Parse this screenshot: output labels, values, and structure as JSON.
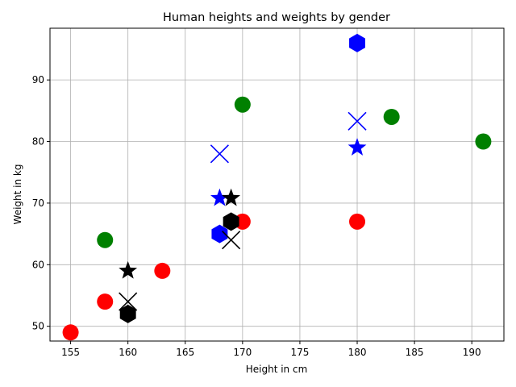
{
  "chart_data": {
    "type": "scatter",
    "title": "Human heights and weights by gender",
    "xlabel": "Height in cm",
    "ylabel": "Weight in kg",
    "xlim": [
      153.2,
      192.8
    ],
    "ylim": [
      47.6,
      98.4
    ],
    "xticks": [
      155,
      160,
      165,
      170,
      175,
      180,
      185,
      190
    ],
    "yticks": [
      50,
      60,
      70,
      80,
      90
    ],
    "grid": true,
    "series": [
      {
        "marker": "circle",
        "color": "#ff0000",
        "points": [
          [
            155,
            49
          ],
          [
            158,
            54
          ],
          [
            163,
            59
          ],
          [
            170,
            67
          ],
          [
            180,
            67
          ]
        ]
      },
      {
        "marker": "circle",
        "color": "#008000",
        "points": [
          [
            158,
            64
          ],
          [
            170,
            86
          ],
          [
            183,
            84
          ],
          [
            191,
            80
          ]
        ]
      },
      {
        "marker": "hexagon",
        "color": "#0000ff",
        "points": [
          [
            168,
            65
          ],
          [
            180,
            96
          ]
        ]
      },
      {
        "marker": "x",
        "color": "#0000ff",
        "points": [
          [
            168,
            78
          ],
          [
            180,
            83.3
          ]
        ]
      },
      {
        "marker": "star",
        "color": "#0000ff",
        "points": [
          [
            168,
            70.8
          ],
          [
            180,
            79
          ]
        ]
      },
      {
        "marker": "hexagon",
        "color": "#000000",
        "points": [
          [
            160,
            52
          ],
          [
            169,
            67
          ]
        ]
      },
      {
        "marker": "x",
        "color": "#000000",
        "points": [
          [
            160,
            54
          ],
          [
            169,
            64
          ]
        ]
      },
      {
        "marker": "star",
        "color": "#000000",
        "points": [
          [
            160,
            59
          ],
          [
            169,
            70.8
          ]
        ]
      }
    ]
  }
}
